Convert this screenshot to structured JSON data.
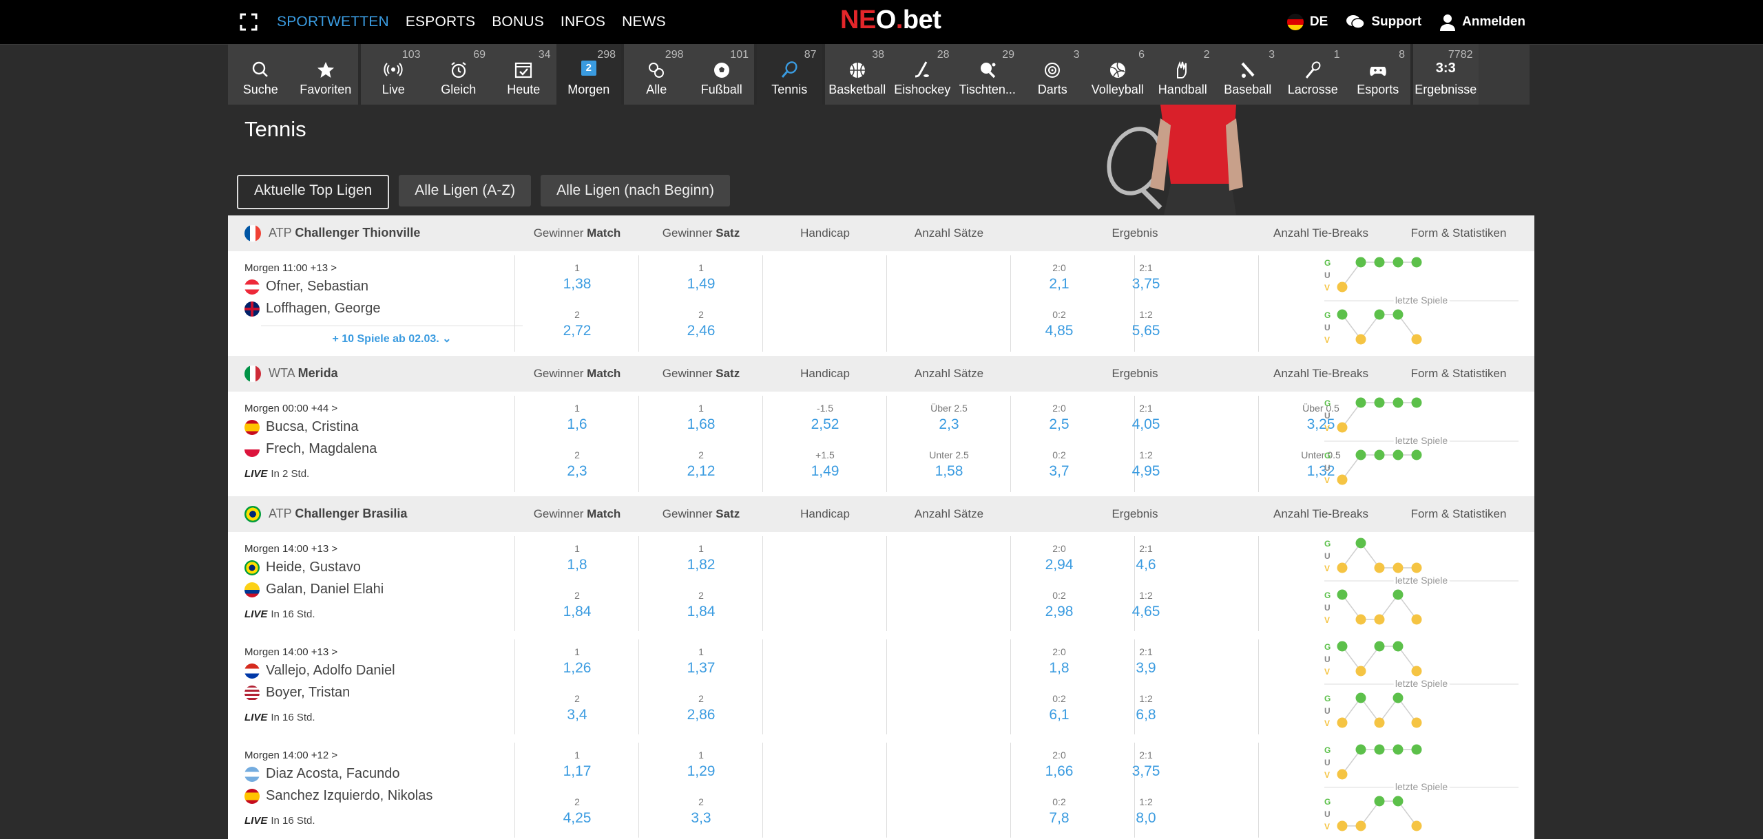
{
  "topnav": [
    "SPORTWETTEN",
    "ESPORTS",
    "BONUS",
    "INFOS",
    "NEWS"
  ],
  "logo": {
    "a": "NE",
    "b": "O",
    "c": ".",
    "d": "bet"
  },
  "topright": {
    "lang": "DE",
    "support": "Support",
    "login": "Anmelden"
  },
  "sports": [
    {
      "label": "Suche",
      "count": "",
      "icon": "search-icon"
    },
    {
      "label": "Favoriten",
      "count": "",
      "icon": "star-icon"
    },
    {
      "label": "Live",
      "count": "103",
      "icon": "live-icon"
    },
    {
      "label": "Gleich",
      "count": "69",
      "icon": "alarm-icon"
    },
    {
      "label": "Heute",
      "count": "34",
      "icon": "calendar-check-icon"
    },
    {
      "label": "Morgen",
      "count": "298",
      "icon": "calendar-2-icon",
      "day": "2"
    },
    {
      "label": "Alle",
      "count": "298",
      "icon": "all-sports-icon"
    },
    {
      "label": "Fußball",
      "count": "101",
      "icon": "football-icon"
    },
    {
      "label": "Tennis",
      "count": "87",
      "icon": "tennis-icon"
    },
    {
      "label": "Basketball",
      "count": "38",
      "icon": "basketball-icon"
    },
    {
      "label": "Eishockey",
      "count": "28",
      "icon": "icehockey-icon"
    },
    {
      "label": "Tischten...",
      "count": "29",
      "icon": "tabletennis-icon"
    },
    {
      "label": "Darts",
      "count": "3",
      "icon": "darts-icon"
    },
    {
      "label": "Volleyball",
      "count": "6",
      "icon": "volleyball-icon"
    },
    {
      "label": "Handball",
      "count": "2",
      "icon": "handball-icon"
    },
    {
      "label": "Baseball",
      "count": "3",
      "icon": "baseball-icon"
    },
    {
      "label": "Lacrosse",
      "count": "1",
      "icon": "lacrosse-icon"
    },
    {
      "label": "Esports",
      "count": "8",
      "icon": "esports-icon"
    },
    {
      "label": "Ergebnisse",
      "count": "7782",
      "icon": "results-icon",
      "glyph": "3:3"
    }
  ],
  "page_title": "Tennis",
  "tabs": [
    "Aktuelle Top Ligen",
    "Alle Ligen (A-Z)",
    "Alle Ligen (nach Beginn)"
  ],
  "columns": {
    "gm": {
      "a": "Gewinner ",
      "b": "Match"
    },
    "gs": {
      "a": "Gewinner ",
      "b": "Satz"
    },
    "hc": "Handicap",
    "as": "Anzahl Sätze",
    "er": "Ergebnis",
    "tb": "Anzahl Tie-Breaks",
    "fs": "Form & Statistiken"
  },
  "form_labels": {
    "g": "G",
    "u": "U",
    "v": "V",
    "last": "letzte Spiele"
  },
  "leagues": [
    {
      "flag": "fr",
      "tour": "ATP ",
      "name": "Challenger Thionville",
      "matches": [
        {
          "time": "Morgen 11:00  +13 >",
          "p1": "Ofner, Sebastian",
          "f1": "at",
          "p2": "Loffhagen, George",
          "f2": "gb",
          "more": "+ 10 Spiele ab 02.03. ⌄",
          "gm": [
            [
              "1",
              "1,38"
            ],
            [
              "2",
              "2,72"
            ]
          ],
          "gs": [
            [
              "1",
              "1,49"
            ],
            [
              "2",
              "2,46"
            ]
          ],
          "hc": null,
          "as": null,
          "er": [
            [
              "2:0",
              "2,1"
            ],
            [
              "2:1",
              "3,75"
            ],
            [
              "0:2",
              "4,85"
            ],
            [
              "1:2",
              "5,65"
            ]
          ],
          "tb": null,
          "form1": [
            "v",
            "g",
            "g",
            "g",
            "g"
          ],
          "form2": [
            "g",
            "v",
            "g",
            "g",
            "v"
          ]
        }
      ]
    },
    {
      "flag": "it",
      "tour": "WTA ",
      "name": "Merida",
      "matches": [
        {
          "time": "Morgen 00:00  +44 >",
          "p1": "Bucsa, Cristina",
          "f1": "es",
          "p2": "Frech, Magdalena",
          "f2": "pl",
          "live": "In 2 Std.",
          "gm": [
            [
              "1",
              "1,6"
            ],
            [
              "2",
              "2,3"
            ]
          ],
          "gs": [
            [
              "1",
              "1,68"
            ],
            [
              "2",
              "2,12"
            ]
          ],
          "hc": [
            [
              "-1.5",
              "2,52"
            ],
            [
              "+1.5",
              "1,49"
            ]
          ],
          "as": [
            [
              "Über 2.5",
              "2,3"
            ],
            [
              "Unter 2.5",
              "1,58"
            ]
          ],
          "er": [
            [
              "2:0",
              "2,5"
            ],
            [
              "2:1",
              "4,05"
            ],
            [
              "0:2",
              "3,7"
            ],
            [
              "1:2",
              "4,95"
            ]
          ],
          "tb": [
            [
              "Über 0.5",
              "3,25"
            ],
            [
              "Unter 0.5",
              "1,32"
            ]
          ],
          "form1": [
            "v",
            "g",
            "g",
            "g",
            "g"
          ],
          "form2": [
            "v",
            "g",
            "g",
            "g",
            "g"
          ]
        }
      ]
    },
    {
      "flag": "br",
      "tour": "ATP ",
      "name": "Challenger Brasilia",
      "matches": [
        {
          "time": "Morgen 14:00  +13 >",
          "p1": "Heide, Gustavo",
          "f1": "br",
          "p2": "Galan, Daniel Elahi",
          "f2": "co",
          "live": "In 16 Std.",
          "gm": [
            [
              "1",
              "1,8"
            ],
            [
              "2",
              "1,84"
            ]
          ],
          "gs": [
            [
              "1",
              "1,82"
            ],
            [
              "2",
              "1,84"
            ]
          ],
          "hc": null,
          "as": null,
          "er": [
            [
              "2:0",
              "2,94"
            ],
            [
              "2:1",
              "4,6"
            ],
            [
              "0:2",
              "2,98"
            ],
            [
              "1:2",
              "4,65"
            ]
          ],
          "tb": null,
          "form1": [
            "v",
            "g",
            "v",
            "v",
            "v"
          ],
          "form2": [
            "g",
            "v",
            "v",
            "g",
            "v"
          ]
        },
        {
          "time": "Morgen 14:00  +13 >",
          "p1": "Vallejo, Adolfo Daniel",
          "f1": "py",
          "p2": "Boyer, Tristan",
          "f2": "us",
          "live": "In 16 Std.",
          "gm": [
            [
              "1",
              "1,26"
            ],
            [
              "2",
              "3,4"
            ]
          ],
          "gs": [
            [
              "1",
              "1,37"
            ],
            [
              "2",
              "2,86"
            ]
          ],
          "hc": null,
          "as": null,
          "er": [
            [
              "2:0",
              "1,8"
            ],
            [
              "2:1",
              "3,9"
            ],
            [
              "0:2",
              "6,1"
            ],
            [
              "1:2",
              "6,8"
            ]
          ],
          "tb": null,
          "form1": [
            "g",
            "v",
            "g",
            "g",
            "v"
          ],
          "form2": [
            "v",
            "g",
            "v",
            "g",
            "v"
          ]
        },
        {
          "time": "Morgen 14:00  +12 >",
          "p1": "Diaz Acosta, Facundo",
          "f1": "ar",
          "p2": "Sanchez Izquierdo, Nikolas",
          "f2": "es",
          "live": "In 16 Std.",
          "gm": [
            [
              "1",
              "1,17"
            ],
            [
              "2",
              "4,25"
            ]
          ],
          "gs": [
            [
              "1",
              "1,29"
            ],
            [
              "2",
              "3,3"
            ]
          ],
          "hc": null,
          "as": null,
          "er": [
            [
              "2:0",
              "1,66"
            ],
            [
              "2:1",
              "3,75"
            ],
            [
              "0:2",
              "7,8"
            ],
            [
              "1:2",
              "8,0"
            ]
          ],
          "tb": null,
          "form1": [
            "v",
            "g",
            "g",
            "g",
            "g"
          ],
          "form2": [
            "v",
            "v",
            "g",
            "g",
            "v"
          ]
        }
      ]
    }
  ],
  "colors": {
    "accent": "#3a9be0",
    "win": "#5cc04a",
    "loss": "#f5c443",
    "draw": "#999999"
  }
}
